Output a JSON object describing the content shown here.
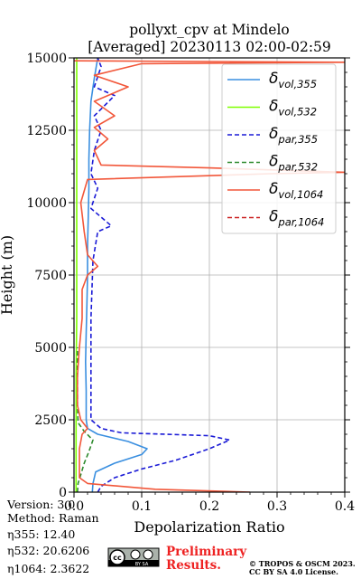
{
  "chart_data": {
    "type": "line",
    "title": "pollyxt_cpv at Mindelo",
    "subtitle": "[Averaged] 20230113 02:00-02:59",
    "xlabel": "Depolarization Ratio",
    "ylabel": "Height (m)",
    "xlim": [
      0,
      0.4
    ],
    "ylim": [
      0,
      15000
    ],
    "xticks": [
      0.0,
      0.1,
      0.2,
      0.3,
      0.4
    ],
    "xtick_labels": [
      "0.0",
      "0.1",
      "0.2",
      "0.3",
      "0.4"
    ],
    "yticks": [
      0,
      2500,
      5000,
      7500,
      10000,
      12500,
      15000
    ],
    "ytick_labels": [
      "0",
      "2500",
      "5000",
      "7500",
      "10000",
      "12500",
      "15000"
    ],
    "grid": true,
    "legend_position": "top-right",
    "series": [
      {
        "name": "δvol,355",
        "color": "#3a8fe0",
        "dash": "solid",
        "points": [
          [
            0.027,
            0
          ],
          [
            0.028,
            300
          ],
          [
            0.032,
            700
          ],
          [
            0.06,
            1000
          ],
          [
            0.1,
            1300
          ],
          [
            0.108,
            1500
          ],
          [
            0.08,
            1750
          ],
          [
            0.035,
            2000
          ],
          [
            0.02,
            2200
          ],
          [
            0.018,
            2500
          ],
          [
            0.018,
            3500
          ],
          [
            0.017,
            4500
          ],
          [
            0.018,
            5500
          ],
          [
            0.019,
            6500
          ],
          [
            0.02,
            7500
          ],
          [
            0.02,
            8500
          ],
          [
            0.021,
            9500
          ],
          [
            0.022,
            10500
          ],
          [
            0.022,
            11500
          ],
          [
            0.023,
            12500
          ],
          [
            0.025,
            13500
          ],
          [
            0.03,
            14300
          ],
          [
            0.035,
            15000
          ]
        ]
      },
      {
        "name": "δvol,532",
        "color": "#7fff00",
        "dash": "solid",
        "points": [
          [
            0.003,
            0
          ],
          [
            0.003,
            2000
          ],
          [
            0.003,
            4000
          ],
          [
            0.004,
            6000
          ],
          [
            0.004,
            8000
          ],
          [
            0.004,
            10000
          ],
          [
            0.004,
            12000
          ],
          [
            0.004,
            14000
          ],
          [
            0.004,
            15000
          ]
        ]
      },
      {
        "name": "δpar,355",
        "color": "#1a1ad6",
        "dash": "dashed",
        "points": [
          [
            0.035,
            0
          ],
          [
            0.04,
            200
          ],
          [
            0.06,
            500
          ],
          [
            0.1,
            800
          ],
          [
            0.15,
            1100
          ],
          [
            0.2,
            1500
          ],
          [
            0.23,
            1800
          ],
          [
            0.2,
            1950
          ],
          [
            0.07,
            2050
          ],
          [
            0.04,
            2200
          ],
          [
            0.025,
            2500
          ],
          [
            0.025,
            6000
          ],
          [
            0.028,
            8000
          ],
          [
            0.035,
            9000
          ],
          [
            0.055,
            9200
          ],
          [
            0.025,
            9800
          ],
          [
            0.035,
            10500
          ],
          [
            0.025,
            11000
          ],
          [
            0.03,
            11800
          ],
          [
            0.04,
            12500
          ],
          [
            0.03,
            13000
          ],
          [
            0.06,
            13700
          ],
          [
            0.03,
            14000
          ],
          [
            0.04,
            14700
          ],
          [
            0.035,
            15000
          ]
        ]
      },
      {
        "name": "δpar,532",
        "color": "#2e8b2e",
        "dash": "dashed",
        "points": [
          [
            0.005,
            0
          ],
          [
            0.006,
            300
          ],
          [
            0.01,
            600
          ],
          [
            0.015,
            1000
          ],
          [
            0.022,
            1400
          ],
          [
            0.028,
            1800
          ],
          [
            0.015,
            2100
          ],
          [
            0.006,
            2400
          ],
          [
            0.005,
            3000
          ],
          [
            0.005,
            5000
          ]
        ]
      },
      {
        "name": "δvol,1064",
        "color": "#f2573a",
        "dash": "solid",
        "points": [
          [
            0.26,
            0
          ],
          [
            0.12,
            100
          ],
          [
            0.02,
            300
          ],
          [
            0.008,
            500
          ],
          [
            0.008,
            1000
          ],
          [
            0.008,
            1500
          ],
          [
            0.012,
            2000
          ],
          [
            0.02,
            2200
          ],
          [
            0.01,
            2500
          ],
          [
            0.005,
            3000
          ],
          [
            0.005,
            4000
          ],
          [
            0.008,
            5000
          ],
          [
            0.012,
            6000
          ],
          [
            0.012,
            7000
          ],
          [
            0.02,
            7500
          ],
          [
            0.035,
            7800
          ],
          [
            0.02,
            8200
          ],
          [
            0.015,
            9000
          ],
          [
            0.01,
            10000
          ],
          [
            0.02,
            10800
          ],
          [
            0.29,
            11000
          ],
          [
            0.4,
            11050
          ],
          [
            0.2,
            11200
          ],
          [
            0.04,
            11300
          ],
          [
            0.03,
            11800
          ],
          [
            0.05,
            12200
          ],
          [
            0.03,
            12600
          ],
          [
            0.06,
            13000
          ],
          [
            0.03,
            13500
          ],
          [
            0.08,
            14000
          ],
          [
            0.03,
            14400
          ],
          [
            0.1,
            14800
          ],
          [
            0.4,
            14850
          ],
          [
            0.0,
            14900
          ]
        ]
      },
      {
        "name": "δpar,1064",
        "color": "#cc2222",
        "dash": "dashed",
        "points": []
      }
    ]
  },
  "legend": {
    "items": [
      {
        "base": "δ",
        "sub": "vol,355",
        "color": "#3a8fe0",
        "dash": "solid"
      },
      {
        "base": "δ",
        "sub": "vol,532",
        "color": "#7fff00",
        "dash": "solid"
      },
      {
        "base": "δ",
        "sub": "par,355",
        "color": "#1a1ad6",
        "dash": "dashed"
      },
      {
        "base": "δ",
        "sub": "par,532",
        "color": "#2e8b2e",
        "dash": "dashed"
      },
      {
        "base": "δ",
        "sub": "vol,1064",
        "color": "#f2573a",
        "dash": "solid"
      },
      {
        "base": "δ",
        "sub": "par,1064",
        "color": "#cc2222",
        "dash": "dashed"
      }
    ]
  },
  "info": {
    "version": "Version: 3.0",
    "method": "Method: Raman",
    "eta355": "η355:  12.40",
    "eta532": "η532: 20.6206",
    "eta1064": "η1064: 2.3622"
  },
  "footer": {
    "cc_text": "cc",
    "cc_by_sa": "BY SA",
    "prelim_line1": "Preliminary",
    "prelim_line2": "Results.",
    "copyright_line1": "© TROPOS & OSCM 2023.",
    "copyright_line2": "CC BY SA 4.0 License."
  }
}
